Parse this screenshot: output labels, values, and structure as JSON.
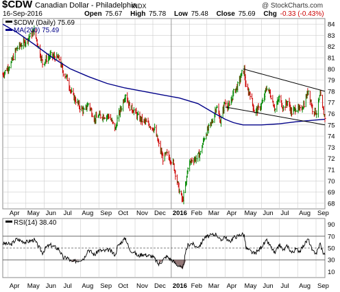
{
  "header": {
    "symbol": "$CDW",
    "description": "Canadian Dollar - Philadelphia",
    "index_tag": "INDX",
    "brand": "@ StockCharts.com",
    "date": "16-Sep-2016",
    "open_label": "Open",
    "open_value": "75.67",
    "high_label": "High",
    "high_value": "75.78",
    "low_label": "Low",
    "low_value": "75.48",
    "close_label": "Close",
    "close_value": "75.69",
    "chg_label": "Chg",
    "chg_value": "-0.33 (-0.43%)"
  },
  "colors": {
    "up_bar": "#008800",
    "down_bar": "#cc0000",
    "ma_line": "#000088",
    "rsi_line": "#000000",
    "rsi_fill": "#806060",
    "grid": "#cccccc",
    "trend_channel": "#000000"
  },
  "chart_data": [
    {
      "type": "ohlc",
      "legend": [
        "$CDW (Daily) 75.69",
        "MA(200) 75.49"
      ],
      "ylim": [
        67.5,
        84.5
      ],
      "y_ticks": [
        68,
        69,
        70,
        71,
        72,
        73,
        74,
        75,
        76,
        77,
        78,
        79,
        80,
        81,
        82,
        83,
        84
      ],
      "x_ticks": [
        "Apr",
        "May",
        "Jun",
        "Jul",
        "Aug",
        "Sep",
        "Oct",
        "Nov",
        "Dec",
        "2016",
        "Feb",
        "Mar",
        "Apr",
        "May",
        "Jun",
        "Jul",
        "Aug",
        "Sep"
      ],
      "x_tick_dates": [
        "2015-04-01",
        "2015-05-01",
        "2015-06-01",
        "2015-07-01",
        "2015-08-01",
        "2015-09-01",
        "2015-10-01",
        "2015-11-01",
        "2015-12-01",
        "2016-01-01",
        "2016-02-01",
        "2016-03-01",
        "2016-04-01",
        "2016-05-01",
        "2016-06-01",
        "2016-07-01",
        "2016-08-01",
        "2016-09-01"
      ],
      "x_range": [
        "2015-03-23",
        "2016-09-16"
      ],
      "price_path": [
        [
          "2015-03-23",
          79.5
        ],
        [
          "2015-04-06",
          80.5
        ],
        [
          "2015-04-15",
          81.8
        ],
        [
          "2015-04-24",
          82.2
        ],
        [
          "2015-05-01",
          82.5
        ],
        [
          "2015-05-15",
          83.4
        ],
        [
          "2015-05-29",
          80.5
        ],
        [
          "2015-06-05",
          80.9
        ],
        [
          "2015-06-12",
          81.2
        ],
        [
          "2015-06-26",
          80.9
        ],
        [
          "2015-07-03",
          79.7
        ],
        [
          "2015-07-10",
          79.1
        ],
        [
          "2015-07-17",
          77.8
        ],
        [
          "2015-07-31",
          76.6
        ],
        [
          "2015-08-07",
          76.2
        ],
        [
          "2015-08-14",
          76.9
        ],
        [
          "2015-08-25",
          75.5
        ],
        [
          "2015-08-31",
          75.8
        ],
        [
          "2015-09-11",
          75.8
        ],
        [
          "2015-09-18",
          75.8
        ],
        [
          "2015-09-29",
          74.6
        ],
        [
          "2015-10-02",
          75.5
        ],
        [
          "2015-10-09",
          76.6
        ],
        [
          "2015-10-16",
          77.8
        ],
        [
          "2015-10-23",
          76.6
        ],
        [
          "2015-10-30",
          76.3
        ],
        [
          "2015-11-06",
          75.7
        ],
        [
          "2015-11-13",
          75.4
        ],
        [
          "2015-11-20",
          75.2
        ],
        [
          "2015-11-30",
          74.8
        ],
        [
          "2015-12-04",
          74.6
        ],
        [
          "2015-12-11",
          73.2
        ],
        [
          "2015-12-18",
          72.0
        ],
        [
          "2015-12-24",
          72.4
        ],
        [
          "2016-01-04",
          71.6
        ],
        [
          "2016-01-08",
          70.7
        ],
        [
          "2016-01-14",
          69.2
        ],
        [
          "2016-01-20",
          68.2
        ],
        [
          "2016-01-26",
          69.8
        ],
        [
          "2016-01-29",
          71.3
        ],
        [
          "2016-02-05",
          71.9
        ],
        [
          "2016-02-12",
          72.0
        ],
        [
          "2016-02-19",
          72.5
        ],
        [
          "2016-02-26",
          73.9
        ],
        [
          "2016-03-04",
          74.7
        ],
        [
          "2016-03-10",
          75.3
        ],
        [
          "2016-03-17",
          76.7
        ],
        [
          "2016-03-24",
          75.3
        ],
        [
          "2016-03-31",
          77.0
        ],
        [
          "2016-04-08",
          76.6
        ],
        [
          "2016-04-15",
          77.9
        ],
        [
          "2016-04-22",
          78.5
        ],
        [
          "2016-04-29",
          79.6
        ],
        [
          "2016-05-03",
          79.9
        ],
        [
          "2016-05-06",
          78.2
        ],
        [
          "2016-05-13",
          77.8
        ],
        [
          "2016-05-20",
          76.2
        ],
        [
          "2016-05-27",
          76.4
        ],
        [
          "2016-06-03",
          77.0
        ],
        [
          "2016-06-10",
          78.4
        ],
        [
          "2016-06-17",
          77.6
        ],
        [
          "2016-06-24",
          76.4
        ],
        [
          "2016-07-01",
          77.4
        ],
        [
          "2016-07-08",
          76.5
        ],
        [
          "2016-07-15",
          77.1
        ],
        [
          "2016-07-22",
          76.1
        ],
        [
          "2016-07-29",
          76.5
        ],
        [
          "2016-08-05",
          76.3
        ],
        [
          "2016-08-12",
          76.9
        ],
        [
          "2016-08-19",
          78.1
        ],
        [
          "2016-08-26",
          76.4
        ],
        [
          "2016-09-02",
          76.1
        ],
        [
          "2016-09-08",
          77.7
        ],
        [
          "2016-09-12",
          76.4
        ],
        [
          "2016-09-16",
          75.7
        ]
      ],
      "ma200_path": [
        [
          "2015-03-23",
          84.0
        ],
        [
          "2015-04-15",
          83.3
        ],
        [
          "2015-05-15",
          82.2
        ],
        [
          "2015-06-15",
          81.0
        ],
        [
          "2015-07-15",
          80.0
        ],
        [
          "2015-08-15",
          79.3
        ],
        [
          "2015-09-15",
          78.7
        ],
        [
          "2015-10-15",
          78.3
        ],
        [
          "2015-11-15",
          78.0
        ],
        [
          "2015-12-15",
          77.7
        ],
        [
          "2016-01-15",
          77.4
        ],
        [
          "2016-02-15",
          76.9
        ],
        [
          "2016-03-15",
          76.0
        ],
        [
          "2016-04-01",
          75.5
        ],
        [
          "2016-04-15",
          75.2
        ],
        [
          "2016-05-01",
          75.0
        ],
        [
          "2016-06-01",
          75.0
        ],
        [
          "2016-07-01",
          75.1
        ],
        [
          "2016-08-01",
          75.3
        ],
        [
          "2016-09-16",
          75.5
        ]
      ],
      "channel_upper": [
        [
          "2016-05-01",
          80.0
        ],
        [
          "2016-09-16",
          78.0
        ]
      ],
      "channel_lower": [
        [
          "2016-04-01",
          76.6
        ],
        [
          "2016-09-16",
          75.0
        ]
      ]
    },
    {
      "type": "line",
      "legend": [
        "RSI(14) 38.40"
      ],
      "ylim": [
        0,
        100
      ],
      "y_ticks": [
        10,
        30,
        50,
        70,
        90
      ],
      "reference_lines": [
        30,
        50,
        70
      ],
      "x_ticks": [
        "Apr",
        "May",
        "Jun",
        "Jul",
        "Aug",
        "Sep",
        "Oct",
        "Nov",
        "Dec",
        "2016",
        "Feb",
        "Mar",
        "Apr",
        "May",
        "Jun",
        "Jul",
        "Aug",
        "Sep"
      ],
      "rsi_path": [
        [
          "2015-03-23",
          58
        ],
        [
          "2015-04-06",
          56
        ],
        [
          "2015-04-15",
          65
        ],
        [
          "2015-04-24",
          62
        ],
        [
          "2015-05-01",
          60
        ],
        [
          "2015-05-15",
          64
        ],
        [
          "2015-05-29",
          42
        ],
        [
          "2015-06-05",
          52
        ],
        [
          "2015-06-12",
          55
        ],
        [
          "2015-06-26",
          48
        ],
        [
          "2015-07-03",
          33
        ],
        [
          "2015-07-10",
          34
        ],
        [
          "2015-07-17",
          26
        ],
        [
          "2015-07-31",
          30
        ],
        [
          "2015-08-07",
          33
        ],
        [
          "2015-08-14",
          48
        ],
        [
          "2015-08-25",
          38
        ],
        [
          "2015-08-31",
          46
        ],
        [
          "2015-09-11",
          45
        ],
        [
          "2015-09-18",
          47
        ],
        [
          "2015-09-29",
          38
        ],
        [
          "2015-10-02",
          52
        ],
        [
          "2015-10-09",
          60
        ],
        [
          "2015-10-16",
          67
        ],
        [
          "2015-10-23",
          46
        ],
        [
          "2015-10-30",
          44
        ],
        [
          "2015-11-06",
          36
        ],
        [
          "2015-11-13",
          40
        ],
        [
          "2015-11-20",
          38
        ],
        [
          "2015-11-30",
          36
        ],
        [
          "2015-12-04",
          32
        ],
        [
          "2015-12-11",
          22
        ],
        [
          "2015-12-18",
          30
        ],
        [
          "2015-12-24",
          36
        ],
        [
          "2016-01-04",
          28
        ],
        [
          "2016-01-08",
          24
        ],
        [
          "2016-01-14",
          20
        ],
        [
          "2016-01-20",
          14
        ],
        [
          "2016-01-26",
          45
        ],
        [
          "2016-01-29",
          55
        ],
        [
          "2016-02-05",
          58
        ],
        [
          "2016-02-12",
          52
        ],
        [
          "2016-02-19",
          55
        ],
        [
          "2016-02-26",
          68
        ],
        [
          "2016-03-04",
          70
        ],
        [
          "2016-03-10",
          72
        ],
        [
          "2016-03-17",
          74
        ],
        [
          "2016-03-24",
          62
        ],
        [
          "2016-03-31",
          70
        ],
        [
          "2016-04-08",
          60
        ],
        [
          "2016-04-15",
          68
        ],
        [
          "2016-04-22",
          70
        ],
        [
          "2016-04-29",
          74
        ],
        [
          "2016-05-03",
          72
        ],
        [
          "2016-05-06",
          50
        ],
        [
          "2016-05-13",
          45
        ],
        [
          "2016-05-20",
          40
        ],
        [
          "2016-05-27",
          46
        ],
        [
          "2016-06-03",
          55
        ],
        [
          "2016-06-10",
          62
        ],
        [
          "2016-06-17",
          52
        ],
        [
          "2016-06-24",
          40
        ],
        [
          "2016-07-01",
          56
        ],
        [
          "2016-07-08",
          46
        ],
        [
          "2016-07-15",
          54
        ],
        [
          "2016-07-22",
          42
        ],
        [
          "2016-07-29",
          48
        ],
        [
          "2016-08-05",
          45
        ],
        [
          "2016-08-12",
          56
        ],
        [
          "2016-08-19",
          65
        ],
        [
          "2016-08-26",
          44
        ],
        [
          "2016-09-02",
          42
        ],
        [
          "2016-09-08",
          58
        ],
        [
          "2016-09-12",
          44
        ],
        [
          "2016-09-16",
          38.4
        ]
      ]
    }
  ]
}
